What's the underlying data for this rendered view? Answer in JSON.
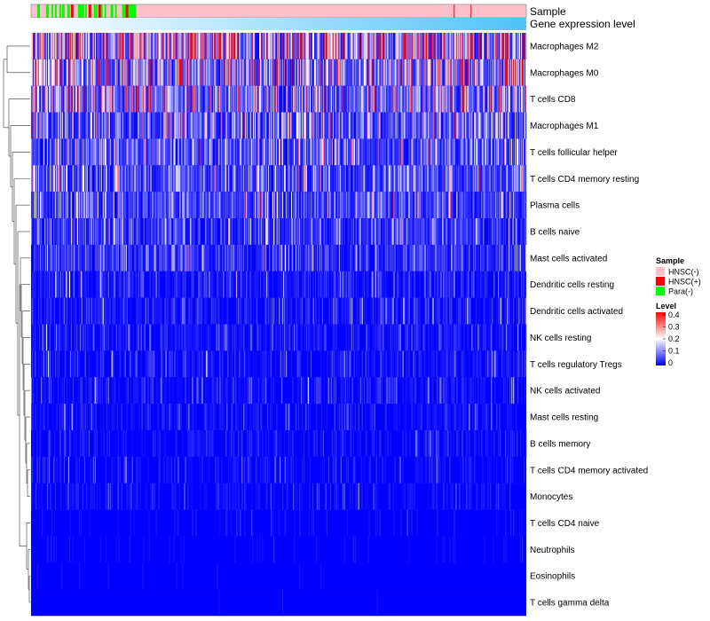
{
  "chart_data": {
    "type": "heatmap",
    "title": "",
    "column_annotations": [
      {
        "name": "Sample",
        "categories": [
          "HNSC(-)",
          "HNSC(+)",
          "Para(-)"
        ]
      },
      {
        "name": "Gene expression level",
        "gradient_from": "#ffffff",
        "gradient_to": "#4fc3f7"
      }
    ],
    "rows": [
      {
        "label": "Macrophages M2",
        "mean": 0.22
      },
      {
        "label": "Macrophages M0",
        "mean": 0.16
      },
      {
        "label": "T cells CD8",
        "mean": 0.14
      },
      {
        "label": "Macrophages M1",
        "mean": 0.1
      },
      {
        "label": "T cells follicular helper",
        "mean": 0.09
      },
      {
        "label": "T cells CD4 memory resting",
        "mean": 0.085
      },
      {
        "label": "Plasma cells",
        "mean": 0.07
      },
      {
        "label": "B cells naive",
        "mean": 0.055
      },
      {
        "label": "Mast cells activated",
        "mean": 0.05
      },
      {
        "label": "Dendritic cells resting",
        "mean": 0.045
      },
      {
        "label": "Dendritic cells activated",
        "mean": 0.04
      },
      {
        "label": "NK cells resting",
        "mean": 0.035
      },
      {
        "label": "T cells regulatory  Tregs",
        "mean": 0.032
      },
      {
        "label": "NK cells activated",
        "mean": 0.03
      },
      {
        "label": "Mast cells resting",
        "mean": 0.028
      },
      {
        "label": "B cells memory",
        "mean": 0.022
      },
      {
        "label": "T cells CD4 memory activated",
        "mean": 0.02
      },
      {
        "label": "Monocytes",
        "mean": 0.018
      },
      {
        "label": "T cells CD4 naive",
        "mean": 0.01
      },
      {
        "label": "Neutrophils",
        "mean": 0.008
      },
      {
        "label": "Eosinophils",
        "mean": 0.004
      },
      {
        "label": "T cells gamma delta",
        "mean": 0.003
      }
    ],
    "n_samples": 560,
    "value_range": [
      0,
      0.4
    ],
    "color_scale": {
      "low": "#0000ff",
      "mid": "#ffffff",
      "high": "#ff0000",
      "mid_value": 0.2
    },
    "legends": {
      "sample": {
        "title": "Sample",
        "items": [
          {
            "label": "HNSC(-)",
            "color": "#ffc0cb"
          },
          {
            "label": "HNSC(+)",
            "color": "#ff0000"
          },
          {
            "label": "Para(-)",
            "color": "#00ff00"
          }
        ]
      },
      "level": {
        "title": "Level",
        "ticks": [
          "0.4",
          "0.3",
          "0.2",
          "0.1",
          "0"
        ]
      }
    }
  }
}
